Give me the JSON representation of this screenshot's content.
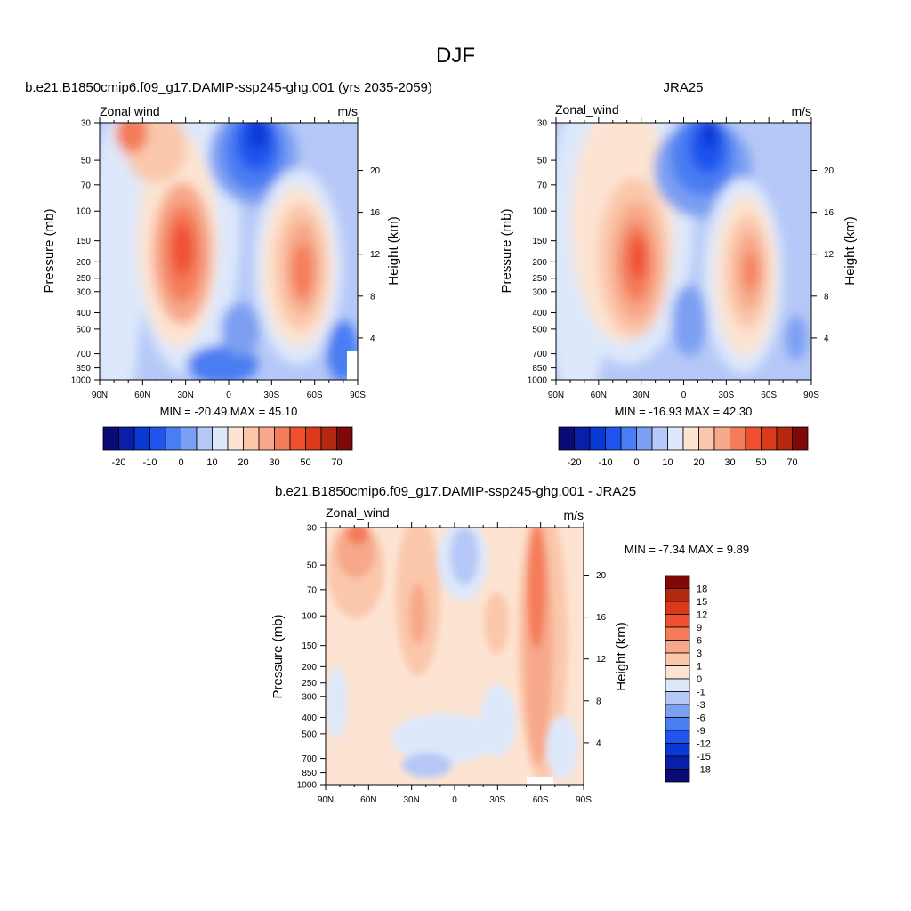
{
  "figure": {
    "title": "DJF",
    "panels": [
      {
        "id": "model",
        "title": "b.e21.B1850cmip6.f09_g17.DAMIP-ssp245-ghg.001 (yrs 2035-2059)",
        "left_label": "Zonal wind",
        "right_label": "m/s",
        "ylabel": "Pressure (mb)",
        "ylabel_right": "Height (km)",
        "stats": "MIN = -20.49  MAX =  45.10"
      },
      {
        "id": "obs",
        "title": "JRA25",
        "left_label": "Zonal_wind",
        "right_label": "m/s",
        "ylabel": "Pressure (mb)",
        "ylabel_right": "Height (km)",
        "stats": "MIN = -16.93  MAX =  42.30"
      },
      {
        "id": "diff",
        "title": "b.e21.B1850cmip6.f09_g17.DAMIP-ssp245-ghg.001 - JRA25",
        "left_label": "Zonal_wind",
        "right_label": "m/s",
        "ylabel": "Pressure (mb)",
        "ylabel_right": "Height (km)",
        "stats": "MIN =  -7.34  MAX =   9.89"
      }
    ]
  },
  "chart_data": [
    {
      "type": "heatmap",
      "panel": "model",
      "x_ticks": [
        "90N",
        "60N",
        "30N",
        "0",
        "30S",
        "60S",
        "90S"
      ],
      "x_values": [
        90,
        60,
        30,
        0,
        -30,
        -60,
        -90
      ],
      "y_ticks": [
        "30",
        "50",
        "70",
        "100",
        "150",
        "200",
        "250",
        "300",
        "400",
        "500",
        "700",
        "850",
        "1000"
      ],
      "y_values": [
        30,
        50,
        70,
        100,
        150,
        200,
        250,
        300,
        400,
        500,
        700,
        850,
        1000
      ],
      "y_scale": "log",
      "height_ticks": [
        "20",
        "16",
        "12",
        "8",
        "4"
      ],
      "height_values": [
        20,
        16,
        12,
        8,
        4
      ],
      "min": -20.49,
      "max": 45.1
    },
    {
      "type": "heatmap",
      "panel": "obs",
      "x_ticks": [
        "90N",
        "60N",
        "30N",
        "0",
        "30S",
        "60S",
        "90S"
      ],
      "x_values": [
        90,
        60,
        30,
        0,
        -30,
        -60,
        -90
      ],
      "y_ticks": [
        "30",
        "50",
        "70",
        "100",
        "150",
        "200",
        "250",
        "300",
        "400",
        "500",
        "700",
        "850",
        "1000"
      ],
      "y_values": [
        30,
        50,
        70,
        100,
        150,
        200,
        250,
        300,
        400,
        500,
        700,
        850,
        1000
      ],
      "y_scale": "log",
      "height_ticks": [
        "20",
        "16",
        "12",
        "8",
        "4"
      ],
      "height_values": [
        20,
        16,
        12,
        8,
        4
      ],
      "min": -16.93,
      "max": 42.3
    },
    {
      "type": "heatmap",
      "panel": "diff",
      "x_ticks": [
        "90N",
        "60N",
        "30N",
        "0",
        "30S",
        "60S",
        "90S"
      ],
      "x_values": [
        90,
        60,
        30,
        0,
        -30,
        -60,
        -90
      ],
      "y_ticks": [
        "30",
        "50",
        "70",
        "100",
        "150",
        "200",
        "250",
        "300",
        "400",
        "500",
        "700",
        "850",
        "1000"
      ],
      "y_values": [
        30,
        50,
        70,
        100,
        150,
        200,
        250,
        300,
        400,
        500,
        700,
        850,
        1000
      ],
      "y_scale": "log",
      "height_ticks": [
        "20",
        "16",
        "12",
        "8",
        "4"
      ],
      "height_values": [
        20,
        16,
        12,
        8,
        4
      ],
      "min": -7.34,
      "max": 9.89
    }
  ],
  "colorbars": {
    "main": {
      "colors": [
        "#0a0a75",
        "#0a1fa8",
        "#0a3ad6",
        "#1f55ee",
        "#4a7df2",
        "#7b9ff2",
        "#b5c8f7",
        "#dde8fb",
        "#fde4d2",
        "#fac7ab",
        "#f7a88a",
        "#f47c5a",
        "#ef5030",
        "#d93a1c",
        "#b52810",
        "#7f0808"
      ],
      "labels": [
        "-20",
        "-10",
        "0",
        "10",
        "20",
        "30",
        "50",
        "70"
      ]
    },
    "diff": {
      "colors": [
        "#7f0808",
        "#b52810",
        "#d93a1c",
        "#ef5030",
        "#f47c5a",
        "#f7a88a",
        "#fac7ab",
        "#fde4d2",
        "#dde8fb",
        "#b5c8f7",
        "#7b9ff2",
        "#4a7df2",
        "#1f55ee",
        "#0a3ad6",
        "#0a1fa8",
        "#0a0a75"
      ],
      "labels": [
        "18",
        "15",
        "12",
        "9",
        "6",
        "3",
        "1",
        "0",
        "-1",
        "-3",
        "-6",
        "-9",
        "-12",
        "-15",
        "-18"
      ]
    }
  }
}
